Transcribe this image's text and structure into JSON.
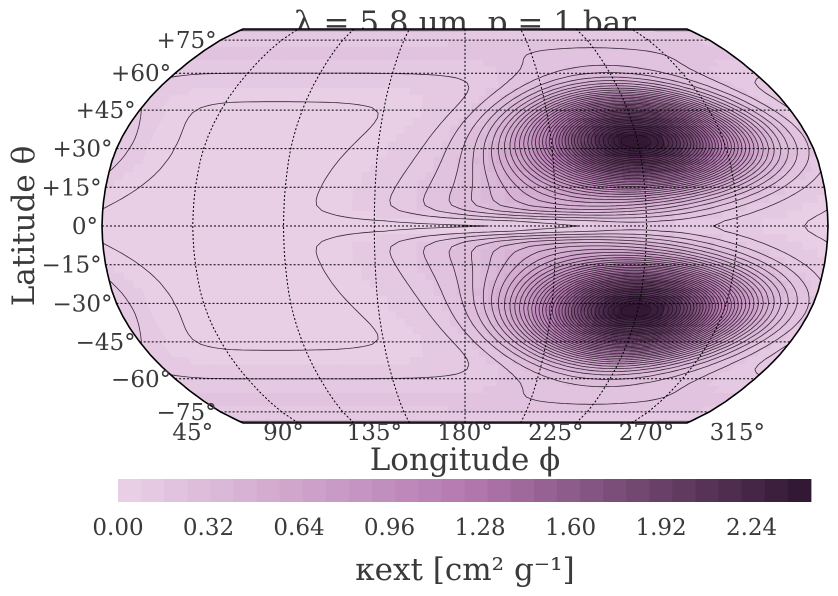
{
  "chart_data": {
    "type": "heatmap",
    "projection": "Robinson",
    "title": "λ = 5.8 μm, p = 1 bar",
    "xlabel": "Longitude ϕ",
    "ylabel": "Latitude θ",
    "lat_ticks": [
      "+75°",
      "+60°",
      "+45°",
      "+30°",
      "+15°",
      "0°",
      "−15°",
      "−30°",
      "−45°",
      "−60°",
      "−75°"
    ],
    "lat_values": [
      75,
      60,
      45,
      30,
      15,
      0,
      -15,
      -30,
      -45,
      -60,
      -75
    ],
    "lon_ticks": [
      "45°",
      "90°",
      "135°",
      "180°",
      "225°",
      "270°",
      "315°"
    ],
    "lon_values": [
      45,
      90,
      135,
      180,
      225,
      270,
      315
    ],
    "field": {
      "description": "extinction opacity map",
      "min": 0.0,
      "max": 2.45,
      "features": [
        {
          "lon": 270,
          "lat": 33,
          "value": 2.4
        },
        {
          "lon": 270,
          "lat": -33,
          "value": 2.4
        },
        {
          "lon": 90,
          "lat": 0,
          "value": 0.05
        }
      ],
      "contour_levels": 40
    },
    "colorbar": {
      "label": "κext [cm² g⁻¹]",
      "ticks": [
        "0.00",
        "0.32",
        "0.64",
        "0.96",
        "1.28",
        "1.60",
        "1.92",
        "2.24"
      ],
      "tick_values": [
        0.0,
        0.32,
        0.64,
        0.96,
        1.28,
        1.6,
        1.92,
        2.24
      ],
      "min": 0.0,
      "max": 2.45,
      "n_levels": 30,
      "colors": {
        "low": "#ead2e8",
        "mid": "#b57ab1",
        "high": "#2f1530"
      }
    }
  }
}
